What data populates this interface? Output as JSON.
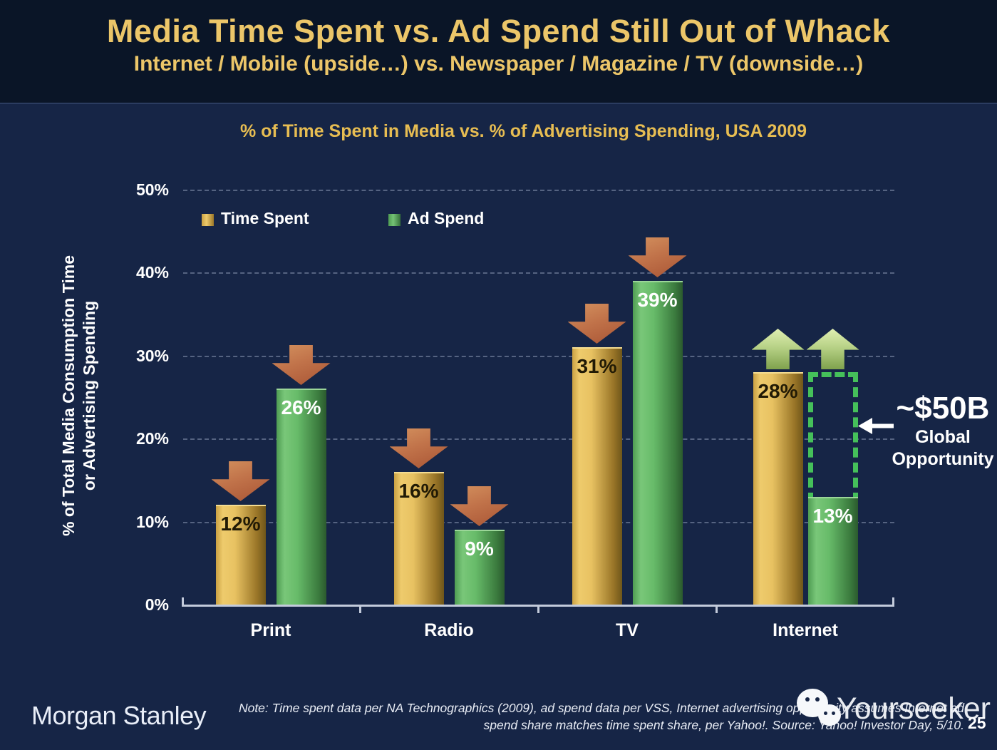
{
  "header": {
    "title": "Media Time Spent vs. Ad Spend Still Out of Whack",
    "subtitle": "Internet / Mobile (upside…) vs. Newspaper / Magazine / TV (downside…)"
  },
  "chart_data": {
    "type": "bar",
    "title": "% of Time Spent in Media vs. % of Advertising Spending, USA 2009",
    "categories": [
      "Print",
      "Radio",
      "TV",
      "Internet"
    ],
    "series": [
      {
        "name": "Time Spent",
        "color": "#d9ab4a",
        "values": [
          12,
          16,
          31,
          28
        ]
      },
      {
        "name": "Ad Spend",
        "color": "#5fae5f",
        "values": [
          26,
          9,
          39,
          13
        ]
      }
    ],
    "value_labels": [
      [
        "12%",
        "16%",
        "31%",
        "28%"
      ],
      [
        "26%",
        "9%",
        "39%",
        "13%"
      ]
    ],
    "yticks": [
      "0%",
      "10%",
      "20%",
      "30%",
      "40%",
      "50%"
    ],
    "ylim": [
      0,
      50
    ],
    "ylabel": "% of Total Media Consumption Time or Advertising Spending",
    "ylabel_line1": "% of Total Media Consumption Time",
    "ylabel_line2": "or Advertising Spending",
    "grid": "horizontal dashed lines every 10%",
    "legend_position": "top-left inside plot",
    "arrows": {
      "Print": "down-down",
      "Radio": "down-down",
      "TV": "down-down",
      "Internet": "up-up"
    },
    "opportunity_gap": {
      "category": "Internet",
      "from": 13,
      "to": 28
    }
  },
  "annotation": {
    "value": "~$50B",
    "line1": "Global",
    "line2": "Opportunity"
  },
  "footer": {
    "brand": "Morgan Stanley",
    "note_line1": "Note: Time spent data per NA Technographics (2009), ad spend data per VSS, Internet advertising opportunity assumes Internet ad",
    "note_line2": "spend share matches time spent share, per Yahoo!. Source: Yahoo! Investor Day, 5/10.",
    "watermark": "Yourseeker",
    "page_number": "25"
  },
  "colors": {
    "header_background": "#0a1527",
    "body_background": "#162546",
    "title_gold": "#ecc669",
    "chart_title_gold": "#e7bd52",
    "time_spent_bar": "#d9ab4a",
    "ad_spend_bar": "#5fae5f",
    "down_arrow": "#bb6a42",
    "up_arrow": "#b8d287",
    "opportunity_dash": "#45c05a"
  }
}
